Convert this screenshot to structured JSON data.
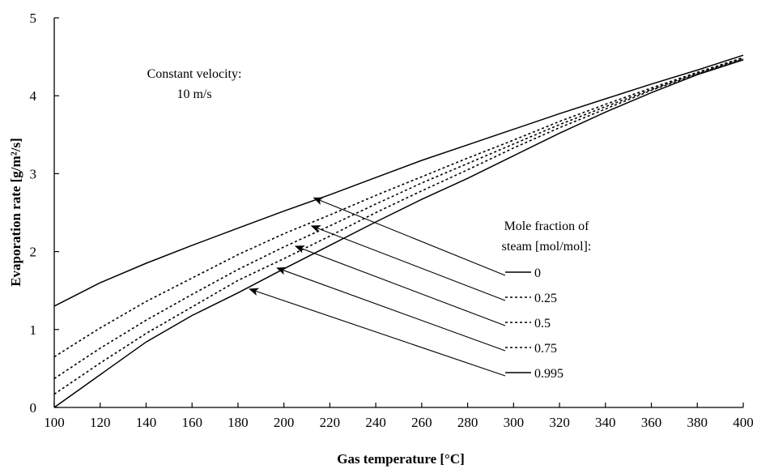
{
  "chart_data": {
    "type": "line",
    "title": "",
    "xlabel": "Gas temperature [°C]",
    "ylabel": "Evaporation rate [g/m²/s]",
    "xlim": [
      100,
      400
    ],
    "ylim": [
      0,
      5
    ],
    "xticks": [
      100,
      120,
      140,
      160,
      180,
      200,
      220,
      240,
      260,
      280,
      300,
      320,
      340,
      360,
      380,
      400
    ],
    "yticks": [
      0,
      1,
      2,
      3,
      4,
      5
    ],
    "grid": false,
    "annotation": {
      "line1": "Constant velocity:",
      "line2": "10 m/s"
    },
    "legend": {
      "title_line1": "Mole fraction of",
      "title_line2": "steam [mol/mol]:",
      "placement": "right"
    },
    "series": [
      {
        "name": "0",
        "style": "solid",
        "arrow_target": {
          "x": 213,
          "y": 2.69
        },
        "x": [
          100,
          120,
          140,
          160,
          180,
          200,
          220,
          240,
          260,
          280,
          300,
          320,
          340,
          360,
          380,
          400
        ],
        "y": [
          1.3,
          1.6,
          1.85,
          2.08,
          2.3,
          2.52,
          2.73,
          2.95,
          3.17,
          3.37,
          3.57,
          3.77,
          3.96,
          4.15,
          4.33,
          4.52
        ]
      },
      {
        "name": "0.25",
        "style": "dotted",
        "arrow_target": {
          "x": 212,
          "y": 2.33
        },
        "x": [
          100,
          120,
          140,
          160,
          180,
          200,
          220,
          240,
          260,
          280,
          300,
          320,
          340,
          360,
          380,
          400
        ],
        "y": [
          0.65,
          1.02,
          1.36,
          1.66,
          1.96,
          2.23,
          2.47,
          2.72,
          2.96,
          3.2,
          3.43,
          3.67,
          3.89,
          4.1,
          4.3,
          4.49
        ]
      },
      {
        "name": "0.5",
        "style": "dotted",
        "arrow_target": {
          "x": 205,
          "y": 2.07
        },
        "x": [
          100,
          120,
          140,
          160,
          180,
          200,
          220,
          240,
          260,
          280,
          300,
          320,
          340,
          360,
          380,
          400
        ],
        "y": [
          0.37,
          0.76,
          1.12,
          1.45,
          1.77,
          2.06,
          2.33,
          2.61,
          2.88,
          3.13,
          3.38,
          3.63,
          3.86,
          4.08,
          4.29,
          4.48
        ]
      },
      {
        "name": "0.75",
        "style": "dotted",
        "arrow_target": {
          "x": 197,
          "y": 1.79
        },
        "x": [
          100,
          120,
          140,
          160,
          180,
          200,
          220,
          240,
          260,
          280,
          300,
          320,
          340,
          360,
          380,
          400
        ],
        "y": [
          0.17,
          0.57,
          0.95,
          1.29,
          1.63,
          1.91,
          2.2,
          2.5,
          2.78,
          3.05,
          3.33,
          3.59,
          3.83,
          4.07,
          4.28,
          4.47
        ]
      },
      {
        "name": "0.995",
        "style": "solid",
        "arrow_target": {
          "x": 185,
          "y": 1.52
        },
        "x": [
          100,
          120,
          140,
          160,
          180,
          200,
          220,
          240,
          260,
          280,
          300,
          320,
          340,
          360,
          380,
          400
        ],
        "y": [
          0.0,
          0.42,
          0.84,
          1.18,
          1.47,
          1.78,
          2.08,
          2.38,
          2.67,
          2.94,
          3.23,
          3.52,
          3.79,
          4.04,
          4.27,
          4.46
        ]
      }
    ]
  }
}
